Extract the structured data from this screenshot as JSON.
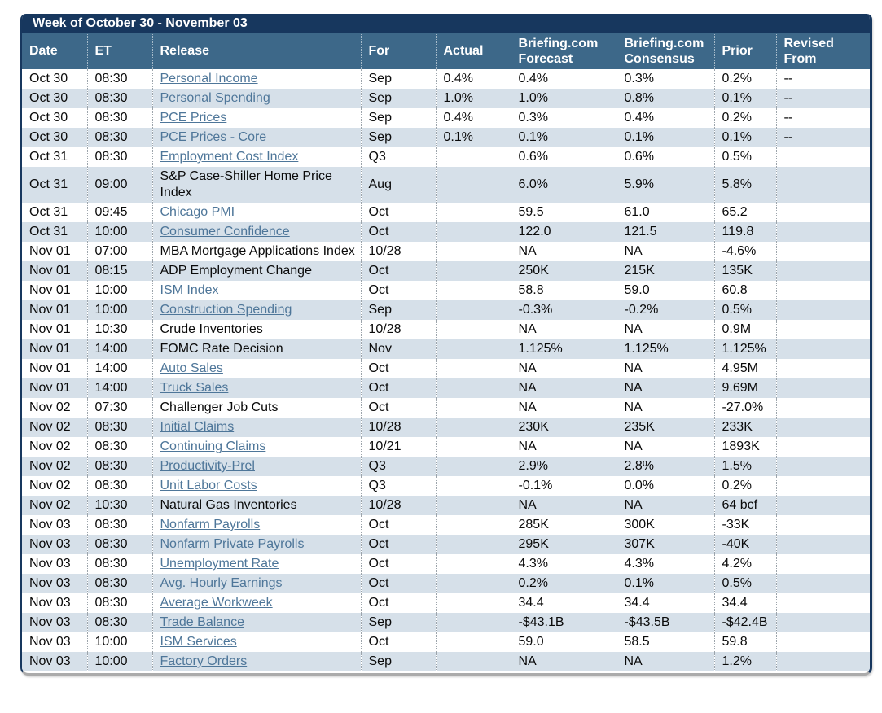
{
  "panel": {
    "title": "Week of October 30 - November 03",
    "colors": {
      "title_bar_bg": "#17375E",
      "header_bg": "#3D6889",
      "row_alt_bg": "#D6E0E9",
      "link": "#4E7699",
      "border_navy": "#17375E",
      "border_gray": "#ABABAB"
    }
  },
  "table": {
    "columns": [
      {
        "key": "date",
        "label": "Date"
      },
      {
        "key": "et",
        "label": "ET"
      },
      {
        "key": "release",
        "label": "Release"
      },
      {
        "key": "for",
        "label": "For"
      },
      {
        "key": "actual",
        "label": "Actual"
      },
      {
        "key": "forecast",
        "label": "Briefing.com Forecast"
      },
      {
        "key": "consensus",
        "label": "Briefing.com Consensus"
      },
      {
        "key": "prior",
        "label": "Prior"
      },
      {
        "key": "revised",
        "label": "Revised From"
      }
    ],
    "rows": [
      {
        "date": "Oct 30",
        "et": "08:30",
        "release": "Personal Income",
        "link": true,
        "for": "Sep",
        "actual": "0.4%",
        "forecast": "0.4%",
        "consensus": "0.3%",
        "prior": "0.2%",
        "revised": "--"
      },
      {
        "date": "Oct 30",
        "et": "08:30",
        "release": "Personal Spending",
        "link": true,
        "for": "Sep",
        "actual": "1.0%",
        "forecast": "1.0%",
        "consensus": "0.8%",
        "prior": "0.1%",
        "revised": "--"
      },
      {
        "date": "Oct 30",
        "et": "08:30",
        "release": "PCE Prices",
        "link": true,
        "for": "Sep",
        "actual": "0.4%",
        "forecast": "0.3%",
        "consensus": "0.4%",
        "prior": "0.2%",
        "revised": "--"
      },
      {
        "date": "Oct 30",
        "et": "08:30",
        "release": "PCE Prices - Core",
        "link": true,
        "for": "Sep",
        "actual": "0.1%",
        "forecast": "0.1%",
        "consensus": "0.1%",
        "prior": "0.1%",
        "revised": "--"
      },
      {
        "date": "Oct 31",
        "et": "08:30",
        "release": "Employment Cost Index",
        "link": true,
        "for": "Q3",
        "actual": "",
        "forecast": "0.6%",
        "consensus": "0.6%",
        "prior": "0.5%",
        "revised": ""
      },
      {
        "date": "Oct 31",
        "et": "09:00",
        "release": "S&P Case-Shiller Home Price Index",
        "link": false,
        "for": "Aug",
        "actual": "",
        "forecast": "6.0%",
        "consensus": "5.9%",
        "prior": "5.8%",
        "revised": ""
      },
      {
        "date": "Oct 31",
        "et": "09:45",
        "release": "Chicago PMI",
        "link": true,
        "for": "Oct",
        "actual": "",
        "forecast": "59.5",
        "consensus": "61.0",
        "prior": "65.2",
        "revised": ""
      },
      {
        "date": "Oct 31",
        "et": "10:00",
        "release": "Consumer Confidence",
        "link": true,
        "for": "Oct",
        "actual": "",
        "forecast": "122.0",
        "consensus": "121.5",
        "prior": "119.8",
        "revised": ""
      },
      {
        "date": "Nov 01",
        "et": "07:00",
        "release": "MBA Mortgage Applications Index",
        "link": false,
        "for": "10/28",
        "actual": "",
        "forecast": "NA",
        "consensus": "NA",
        "prior": "-4.6%",
        "revised": ""
      },
      {
        "date": "Nov 01",
        "et": "08:15",
        "release": "ADP Employment Change",
        "link": false,
        "for": "Oct",
        "actual": "",
        "forecast": "250K",
        "consensus": "215K",
        "prior": "135K",
        "revised": ""
      },
      {
        "date": "Nov 01",
        "et": "10:00",
        "release": "ISM Index",
        "link": true,
        "for": "Oct",
        "actual": "",
        "forecast": "58.8",
        "consensus": "59.0",
        "prior": "60.8",
        "revised": ""
      },
      {
        "date": "Nov 01",
        "et": "10:00",
        "release": "Construction Spending",
        "link": true,
        "for": "Sep",
        "actual": "",
        "forecast": "-0.3%",
        "consensus": "-0.2%",
        "prior": "0.5%",
        "revised": ""
      },
      {
        "date": "Nov 01",
        "et": "10:30",
        "release": "Crude Inventories",
        "link": false,
        "for": "10/28",
        "actual": "",
        "forecast": "NA",
        "consensus": "NA",
        "prior": "0.9M",
        "revised": ""
      },
      {
        "date": "Nov 01",
        "et": "14:00",
        "release": "FOMC Rate Decision",
        "link": false,
        "for": "Nov",
        "actual": "",
        "forecast": "1.125%",
        "consensus": "1.125%",
        "prior": "1.125%",
        "revised": ""
      },
      {
        "date": "Nov 01",
        "et": "14:00",
        "release": "Auto Sales",
        "link": true,
        "for": "Oct",
        "actual": "",
        "forecast": "NA",
        "consensus": "NA",
        "prior": "4.95M",
        "revised": ""
      },
      {
        "date": "Nov 01",
        "et": "14:00",
        "release": "Truck Sales",
        "link": true,
        "for": "Oct",
        "actual": "",
        "forecast": "NA",
        "consensus": "NA",
        "prior": "9.69M",
        "revised": ""
      },
      {
        "date": "Nov 02",
        "et": "07:30",
        "release": "Challenger Job Cuts",
        "link": false,
        "for": "Oct",
        "actual": "",
        "forecast": "NA",
        "consensus": "NA",
        "prior": "-27.0%",
        "revised": ""
      },
      {
        "date": "Nov 02",
        "et": "08:30",
        "release": "Initial Claims",
        "link": true,
        "for": "10/28",
        "actual": "",
        "forecast": "230K",
        "consensus": "235K",
        "prior": "233K",
        "revised": ""
      },
      {
        "date": "Nov 02",
        "et": "08:30",
        "release": "Continuing Claims",
        "link": true,
        "for": "10/21",
        "actual": "",
        "forecast": "NA",
        "consensus": "NA",
        "prior": "1893K",
        "revised": ""
      },
      {
        "date": "Nov 02",
        "et": "08:30",
        "release": "Productivity-Prel",
        "link": true,
        "for": "Q3",
        "actual": "",
        "forecast": "2.9%",
        "consensus": "2.8%",
        "prior": "1.5%",
        "revised": ""
      },
      {
        "date": "Nov 02",
        "et": "08:30",
        "release": "Unit Labor Costs",
        "link": true,
        "for": "Q3",
        "actual": "",
        "forecast": "-0.1%",
        "consensus": "0.0%",
        "prior": "0.2%",
        "revised": ""
      },
      {
        "date": "Nov 02",
        "et": "10:30",
        "release": "Natural Gas Inventories",
        "link": false,
        "for": "10/28",
        "actual": "",
        "forecast": "NA",
        "consensus": "NA",
        "prior": "64 bcf",
        "revised": ""
      },
      {
        "date": "Nov 03",
        "et": "08:30",
        "release": "Nonfarm Payrolls",
        "link": true,
        "for": "Oct",
        "actual": "",
        "forecast": "285K",
        "consensus": "300K",
        "prior": "-33K",
        "revised": ""
      },
      {
        "date": "Nov 03",
        "et": "08:30",
        "release": "Nonfarm Private Payrolls",
        "link": true,
        "for": "Oct",
        "actual": "",
        "forecast": "295K",
        "consensus": "307K",
        "prior": "-40K",
        "revised": ""
      },
      {
        "date": "Nov 03",
        "et": "08:30",
        "release": "Unemployment Rate",
        "link": true,
        "for": "Oct",
        "actual": "",
        "forecast": "4.3%",
        "consensus": "4.3%",
        "prior": "4.2%",
        "revised": ""
      },
      {
        "date": "Nov 03",
        "et": "08:30",
        "release": "Avg. Hourly Earnings",
        "link": true,
        "for": "Oct",
        "actual": "",
        "forecast": "0.2%",
        "consensus": "0.1%",
        "prior": "0.5%",
        "revised": ""
      },
      {
        "date": "Nov 03",
        "et": "08:30",
        "release": "Average Workweek",
        "link": true,
        "for": "Oct",
        "actual": "",
        "forecast": "34.4",
        "consensus": "34.4",
        "prior": "34.4",
        "revised": ""
      },
      {
        "date": "Nov 03",
        "et": "08:30",
        "release": "Trade Balance",
        "link": true,
        "for": "Sep",
        "actual": "",
        "forecast": "-$43.1B",
        "consensus": "-$43.5B",
        "prior": "-$42.4B",
        "revised": ""
      },
      {
        "date": "Nov 03",
        "et": "10:00",
        "release": "ISM Services",
        "link": true,
        "for": "Oct",
        "actual": "",
        "forecast": "59.0",
        "consensus": "58.5",
        "prior": "59.8",
        "revised": ""
      },
      {
        "date": "Nov 03",
        "et": "10:00",
        "release": "Factory Orders",
        "link": true,
        "for": "Sep",
        "actual": "",
        "forecast": "NA",
        "consensus": "NA",
        "prior": "1.2%",
        "revised": ""
      }
    ]
  }
}
